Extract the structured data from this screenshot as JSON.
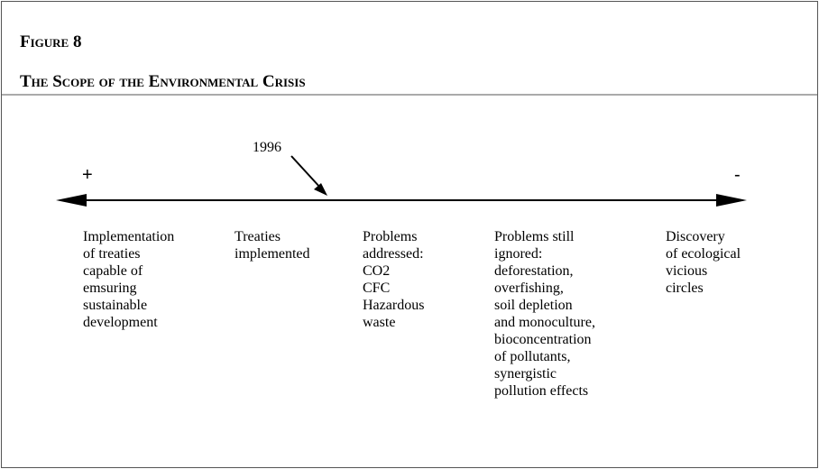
{
  "figure": {
    "label": "Figure 8",
    "title": "The Scope of the Environmental Crisis"
  },
  "timeline": {
    "year": "1996",
    "left_end": "+",
    "right_end": "-",
    "stages": [
      {
        "lines": [
          "Implementation",
          "of treaties",
          "capable of",
          "emsuring",
          "sustainable",
          "development"
        ]
      },
      {
        "lines": [
          "Treaties",
          "implemented"
        ]
      },
      {
        "lines": [
          "Problems",
          "addressed:",
          "CO2",
          "CFC",
          "Hazardous",
          "waste"
        ]
      },
      {
        "lines": [
          "Problems still",
          "ignored:",
          "deforestation,",
          "overfishing,",
          "soil depletion",
          "and monoculture,",
          "bioconcentration",
          "of pollutants,",
          "synergistic",
          "pollution effects"
        ]
      },
      {
        "lines": [
          "Discovery",
          "of ecological",
          "vicious",
          "circles"
        ]
      }
    ]
  }
}
